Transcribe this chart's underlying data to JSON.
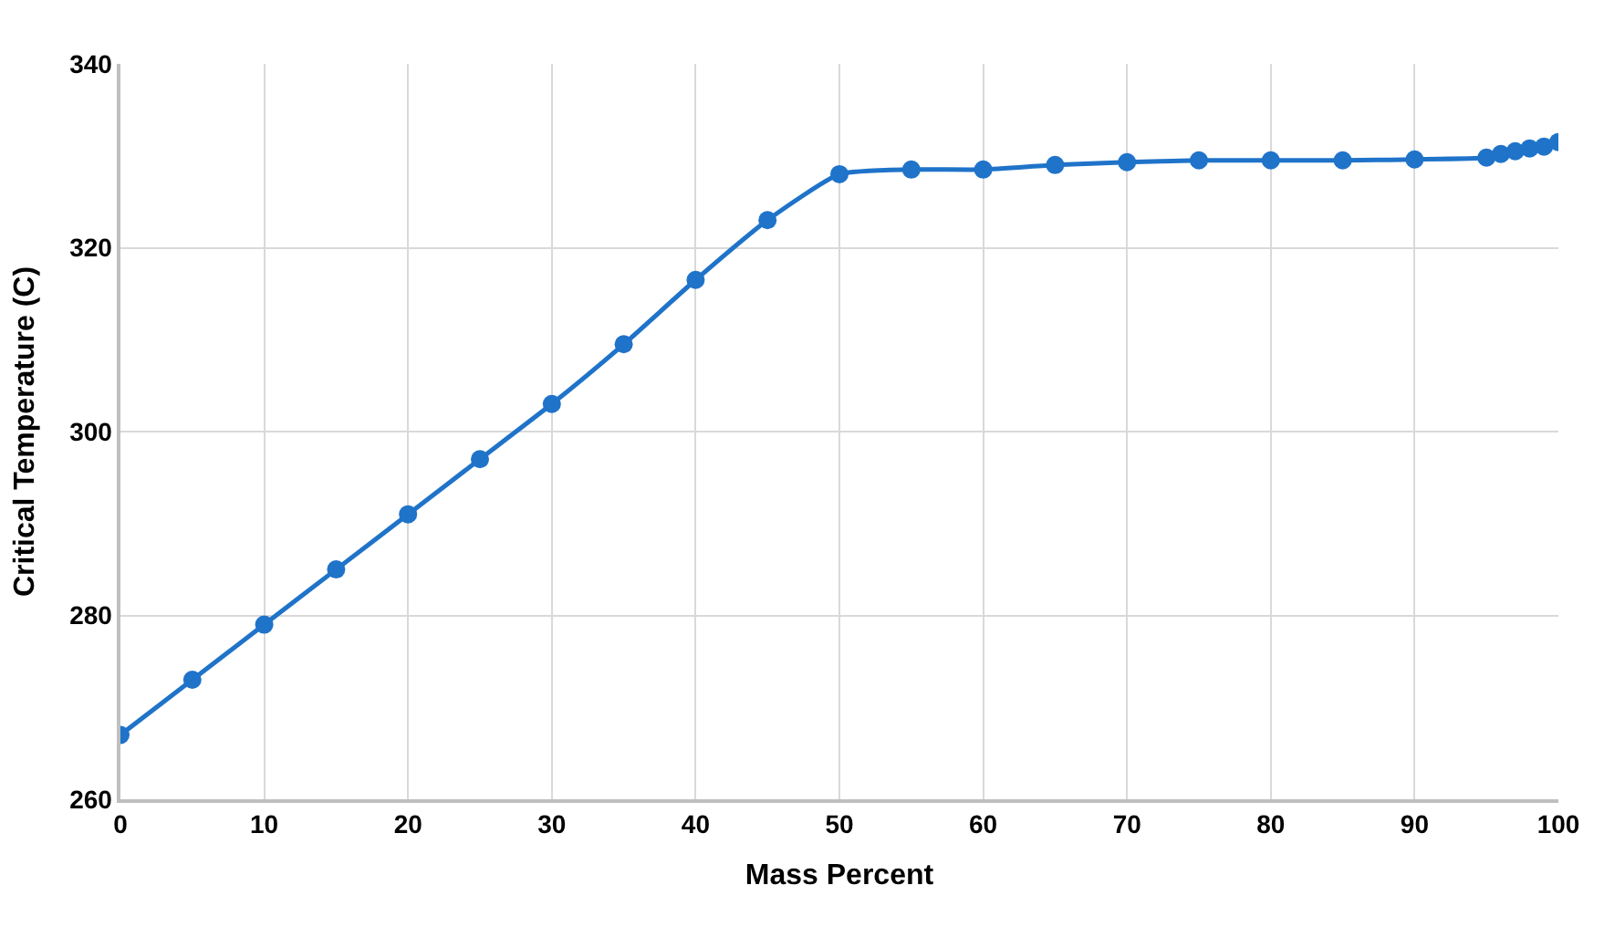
{
  "chart_data": {
    "type": "line",
    "xlabel": "Mass Percent",
    "ylabel": "Critical Temperature (C)",
    "x": [
      0,
      5,
      10,
      15,
      20,
      25,
      30,
      35,
      40,
      45,
      50,
      55,
      60,
      65,
      70,
      75,
      80,
      85,
      90,
      95,
      96,
      97,
      98,
      99,
      100
    ],
    "series": [
      {
        "color": "#1f73c9",
        "values": [
          267,
          273,
          279,
          285,
          291,
          297,
          303,
          309.5,
          316.5,
          323,
          328,
          328.5,
          328.5,
          329,
          329.3,
          329.5,
          329.5,
          329.5,
          329.6,
          329.8,
          330.2,
          330.5,
          330.8,
          331,
          331.5
        ]
      }
    ],
    "xlim": [
      0,
      100
    ],
    "xticks": [
      0,
      10,
      20,
      30,
      40,
      50,
      60,
      70,
      80,
      90,
      100
    ],
    "ylim": [
      260,
      340
    ],
    "yticks": [
      260,
      280,
      300,
      320,
      340
    ],
    "grid": true,
    "marker": "circle",
    "line_style": "solid",
    "legend": false
  }
}
